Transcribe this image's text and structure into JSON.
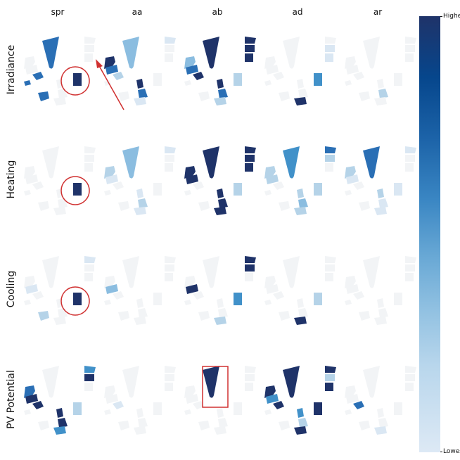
{
  "columns": [
    "spr",
    "aa",
    "ab",
    "ad",
    "ar"
  ],
  "rows": [
    "Irradiance",
    "Heating",
    "Cooling",
    "PV Potential"
  ],
  "colorbar": {
    "high_label": "Highest",
    "low_label": "Lowest",
    "color_high": "#1f3369",
    "color_low": "#dde9f5"
  },
  "colors": {
    "ghost": "#f2f4f6",
    "very_light": "#dae7f3",
    "light": "#b5d3e8",
    "mid": "#8bbde0",
    "strong": "#4191c9",
    "deep": "#2a6fb5",
    "dark": "#1f3369",
    "annotation": "#d03030"
  }
}
